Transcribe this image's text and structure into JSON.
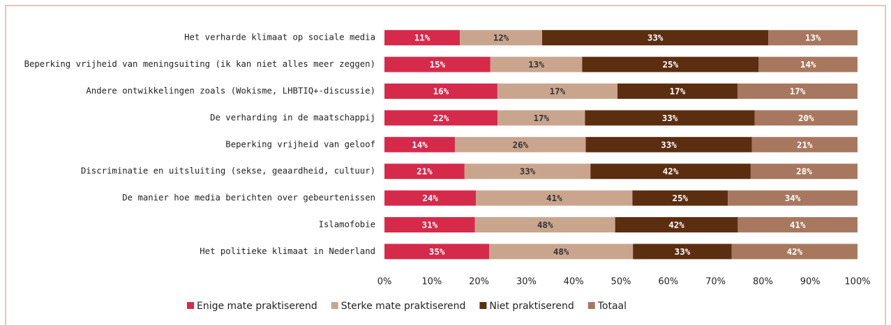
{
  "chart_data": {
    "type": "bar",
    "orientation": "horizontal",
    "stacked": "percent",
    "categories": [
      "Het verharde klimaat op sociale media",
      "Beperking vrijheid van meningsuiting (ik kan niet alles meer zeggen)",
      "Andere ontwikkelingen zoals  (Wokisme, LHBTIQ+-discussie)",
      "De verharding in de maatschappij",
      "Beperking vrijheid van geloof",
      "Discriminatie en uitsluiting (sekse, geaardheid, cultuur)",
      "De manier hoe media berichten over gebeurtenissen",
      "Islamofobie",
      "Het politieke klimaat in Nederland"
    ],
    "series": [
      {
        "name": "Enige mate praktiserend",
        "color": "#d62a4b",
        "values": [
          11,
          15,
          16,
          22,
          14,
          21,
          24,
          31,
          35
        ],
        "value_labels": [
          "11%",
          "15%",
          "16%",
          "22%",
          "14%",
          "21%",
          "24%",
          "31%",
          "35%"
        ]
      },
      {
        "name": "Sterke mate praktiserend",
        "color": "#caa58e",
        "values": [
          12,
          13,
          17,
          17,
          26,
          33,
          41,
          48,
          48
        ],
        "value_labels": [
          "12%",
          "13%",
          "17%",
          "17%",
          "26%",
          "33%",
          "41%",
          "48%",
          "48%"
        ]
      },
      {
        "name": "Niet praktiserend",
        "color": "#5b2e10",
        "values": [
          33,
          25,
          17,
          33,
          33,
          42,
          25,
          42,
          33
        ],
        "value_labels": [
          "33%",
          "25%",
          "17%",
          "33%",
          "33%",
          "42%",
          "25%",
          "42%",
          "33%"
        ]
      },
      {
        "name": "Totaal",
        "color": "#a7785f",
        "values": [
          13,
          14,
          17,
          20,
          21,
          28,
          34,
          41,
          42
        ],
        "value_labels": [
          "13%",
          "14%",
          "17%",
          "20%",
          "21%",
          "28%",
          "34%",
          "41%",
          "42%"
        ]
      }
    ],
    "xlim": [
      0,
      100
    ],
    "xticks": [
      {
        "value": 0,
        "label": "0%"
      },
      {
        "value": 10,
        "label": "10%"
      },
      {
        "value": 20,
        "label": "20%"
      },
      {
        "value": 30,
        "label": "30%"
      },
      {
        "value": 40,
        "label": "40%"
      },
      {
        "value": 50,
        "label": "50%"
      },
      {
        "value": 60,
        "label": "60%"
      },
      {
        "value": 70,
        "label": "70%"
      },
      {
        "value": 80,
        "label": "80%"
      },
      {
        "value": 90,
        "label": "90%"
      },
      {
        "value": 100,
        "label": "100%"
      }
    ],
    "legend": "bottom"
  }
}
